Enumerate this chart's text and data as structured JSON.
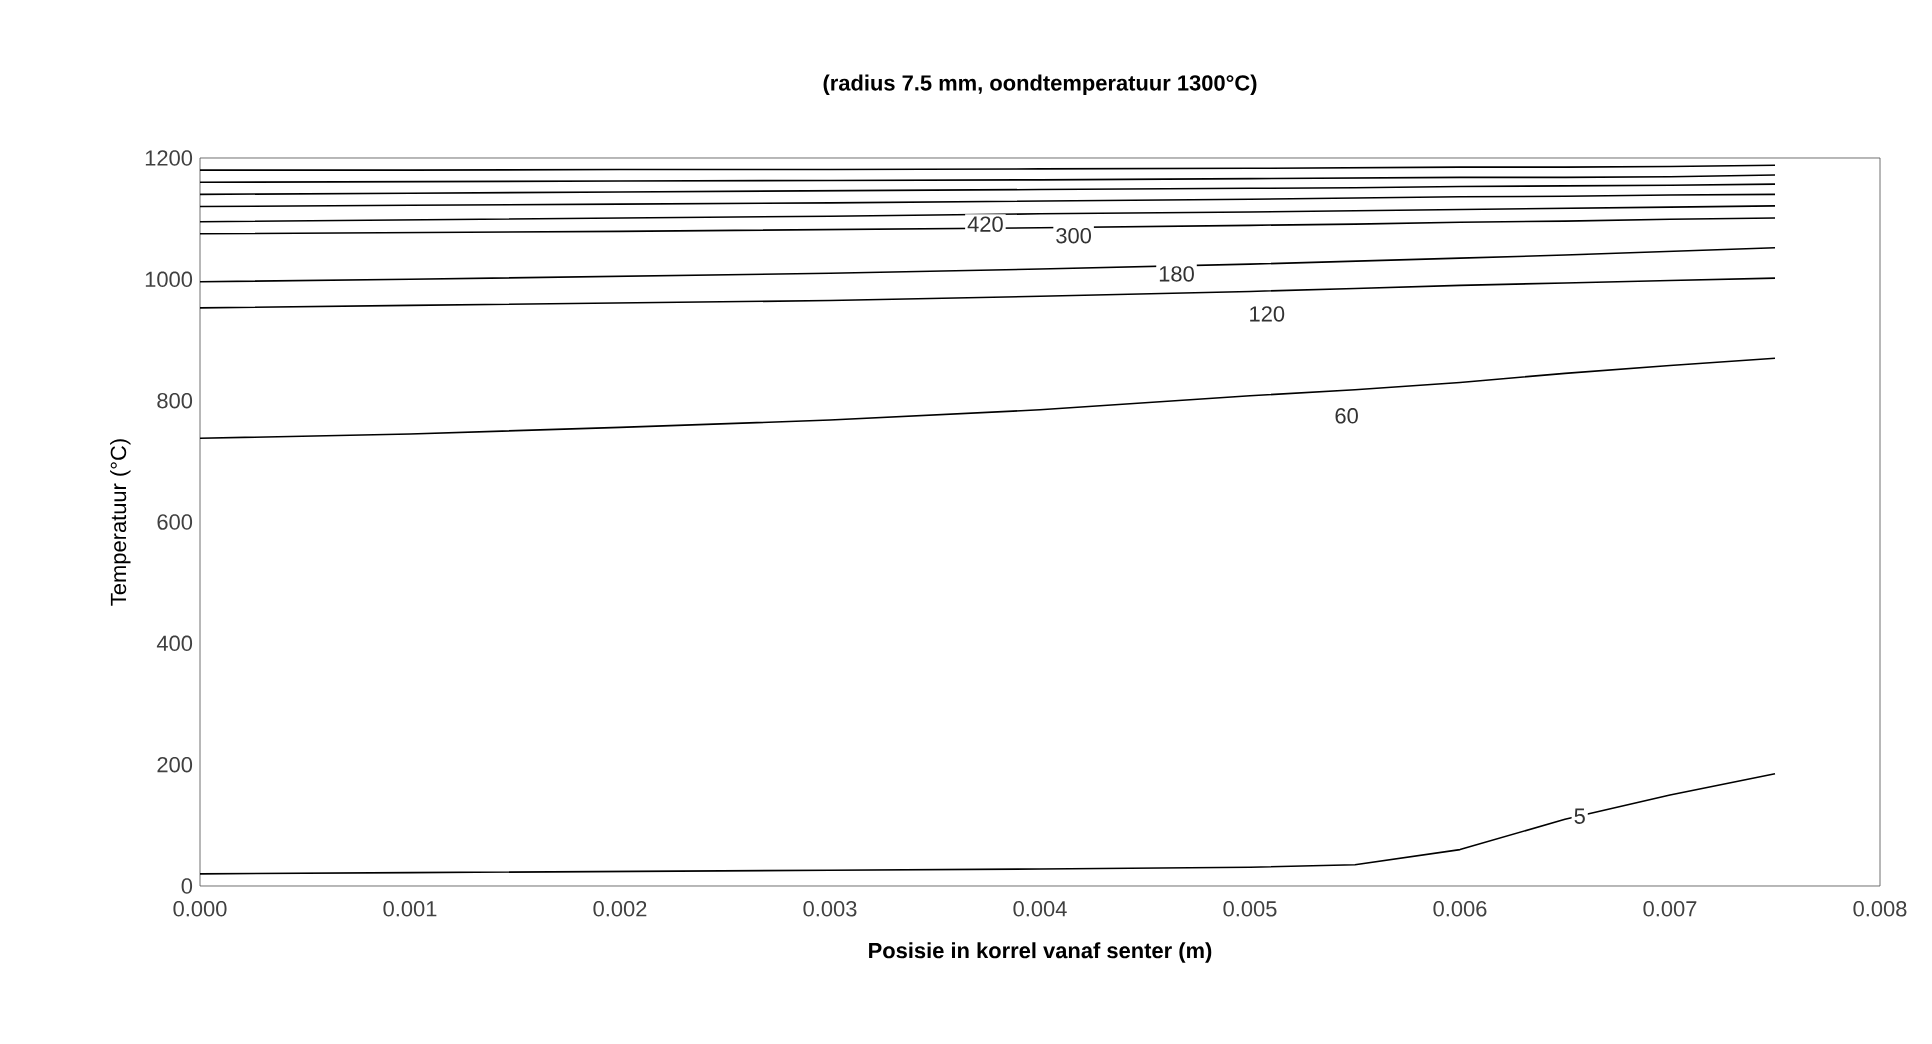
{
  "chart_data": {
    "type": "line",
    "title": "(radius 7.5 mm, oondtemperatuur 1300°C)",
    "xlabel": "Posisie in korrel vanaf senter (m)",
    "ylabel": "Temperatuur (°C)",
    "x": [
      0,
      0.001,
      0.002,
      0.003,
      0.004,
      0.005,
      0.0055,
      0.006,
      0.0065,
      0.007,
      0.0075
    ],
    "xlim": [
      0,
      0.008
    ],
    "ylim": [
      0,
      1200
    ],
    "xticks": [
      {
        "value": 0,
        "label": "0.000"
      },
      {
        "value": 0.001,
        "label": "0.001"
      },
      {
        "value": 0.002,
        "label": "0.002"
      },
      {
        "value": 0.003,
        "label": "0.003"
      },
      {
        "value": 0.004,
        "label": "0.004"
      },
      {
        "value": 0.005,
        "label": "0.005"
      },
      {
        "value": 0.006,
        "label": "0.006"
      },
      {
        "value": 0.007,
        "label": "0.007"
      },
      {
        "value": 0.008,
        "label": "0.008"
      }
    ],
    "yticks": [
      0,
      200,
      400,
      600,
      800,
      1000,
      1200
    ],
    "grid": false,
    "marker": "none",
    "line_style": "solid",
    "series": [
      {
        "color": "#000000",
        "values": [
          20,
          22,
          24,
          26,
          28,
          31,
          35,
          60,
          110,
          150,
          185
        ]
      },
      {
        "color": "#000000",
        "values": [
          738,
          745,
          756,
          768,
          785,
          808,
          818,
          830,
          845,
          858,
          870
        ]
      },
      {
        "color": "#000000",
        "values": [
          953,
          957,
          961,
          965,
          972,
          980,
          985,
          990,
          994,
          998,
          1002
        ]
      },
      {
        "color": "#000000",
        "values": [
          996,
          1000,
          1005,
          1010,
          1017,
          1025,
          1030,
          1035,
          1040,
          1046,
          1052
        ]
      },
      {
        "color": "#000000",
        "values": [
          1075,
          1077,
          1079,
          1082,
          1085,
          1089,
          1091,
          1094,
          1096,
          1099,
          1101
        ]
      },
      {
        "color": "#000000",
        "values": [
          1095,
          1098,
          1101,
          1104,
          1108,
          1111,
          1113,
          1115,
          1117,
          1119,
          1121
        ]
      },
      {
        "color": "#000000",
        "values": [
          1120,
          1122,
          1124,
          1126,
          1129,
          1132,
          1134,
          1136,
          1137,
          1139,
          1140
        ]
      },
      {
        "color": "#000000",
        "values": [
          1140,
          1142,
          1144,
          1146,
          1148,
          1150,
          1151,
          1153,
          1154,
          1155,
          1157
        ]
      },
      {
        "color": "#000000",
        "values": [
          1160,
          1161,
          1162,
          1163,
          1164,
          1166,
          1167,
          1168,
          1168,
          1169,
          1172
        ]
      },
      {
        "color": "#000000",
        "values": [
          1180,
          1180,
          1181,
          1181,
          1182,
          1183,
          1184,
          1185,
          1185,
          1186,
          1188
        ]
      }
    ],
    "annotations": [
      {
        "text": "5",
        "x": 0.00657,
        "y": 115
      },
      {
        "text": "60",
        "x": 0.00546,
        "y": 775
      },
      {
        "text": "120",
        "x": 0.00508,
        "y": 943
      },
      {
        "text": "180",
        "x": 0.00465,
        "y": 1009
      },
      {
        "text": "300",
        "x": 0.00416,
        "y": 1072
      },
      {
        "text": "420",
        "x": 0.00374,
        "y": 1091
      }
    ]
  }
}
